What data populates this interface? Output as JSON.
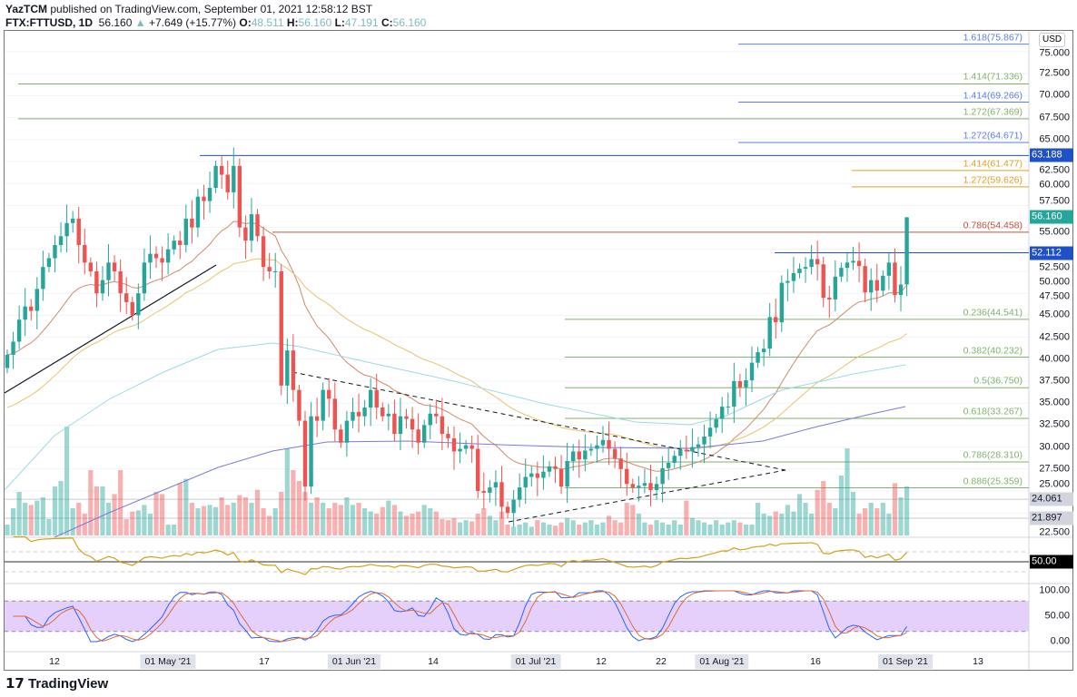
{
  "header": {
    "author": "YazTCM",
    "published": "published on TradingView.com, September 01, 2021 12:58:12 BST",
    "symbol": "FTX:FTTUSD, 1D",
    "last": "56.160",
    "change": "+7.649 (+15.77%)",
    "o_label": "O:",
    "o": "48.511",
    "h_label": "H:",
    "h": "56.160",
    "l_label": "L:",
    "l": "47.191",
    "c_label": "C:",
    "c": "56.160",
    "arrow": "▲"
  },
  "currency": "USD",
  "price_axis_labels": [
    "75.000",
    "72.500",
    "70.000",
    "67.500",
    "65.000",
    "62.500",
    "60.000",
    "57.500",
    "55.000",
    "52.500",
    "50.000",
    "47.500",
    "45.000",
    "42.500",
    "40.000",
    "37.500",
    "35.000",
    "32.500",
    "30.000",
    "27.500",
    "25.000",
    "22.500"
  ],
  "price_tags": [
    {
      "text": "63.188",
      "value": 63.188,
      "color": "#1e50c8"
    },
    {
      "text": "56.160",
      "value": 56.16,
      "color": "#26a69a"
    },
    {
      "text": "52.112",
      "value": 52.112,
      "color": "#1e50c8"
    },
    {
      "text": "24.061",
      "value": 24.061,
      "color": "#d1d4dc",
      "fg": "#131722"
    },
    {
      "text": "21.897",
      "value": 21.897,
      "color": "#d1d4dc",
      "fg": "#131722"
    }
  ],
  "fib_levels": [
    {
      "label": "1.618(75.867)",
      "value": 75.867,
      "color": "#5b7ee5"
    },
    {
      "label": "1.414(71.336)",
      "value": 71.336,
      "color": "#7fb36a"
    },
    {
      "label": "1.414(69.266)",
      "value": 69.266,
      "color": "#5b7ee5"
    },
    {
      "label": "1.272(67.369)",
      "value": 67.369,
      "color": "#7fb36a"
    },
    {
      "label": "1.272(64.671)",
      "value": 64.671,
      "color": "#5b7ee5"
    },
    {
      "label": "1.414(61.477)",
      "value": 61.477,
      "color": "#e0a020"
    },
    {
      "label": "1.272(59.626)",
      "value": 59.626,
      "color": "#e0a020"
    },
    {
      "label": "0.786(54.458)",
      "value": 54.458,
      "color": "#c0503a"
    },
    {
      "label": "0.236(44.541)",
      "value": 44.541,
      "color": "#7fb36a"
    },
    {
      "label": "0.382(40.232)",
      "value": 40.232,
      "color": "#7fb36a"
    },
    {
      "label": "0.5(36.750)",
      "value": 36.75,
      "color": "#7fb36a"
    },
    {
      "label": "0.618(33.267)",
      "value": 33.267,
      "color": "#7fb36a"
    },
    {
      "label": "0.786(28.310)",
      "value": 28.31,
      "color": "#7fb36a"
    },
    {
      "label": "0.886(25.359)",
      "value": 25.359,
      "color": "#7fb36a"
    }
  ],
  "rsi": {
    "level_label": "50.00"
  },
  "stoch": {
    "axis_labels": [
      "100.00",
      "50.00",
      "0.00"
    ],
    "band": [
      20,
      80
    ],
    "band_color": "#e1c8fa"
  },
  "time_labels": [
    {
      "text": "12",
      "hl": false
    },
    {
      "text": "01 May '21",
      "hl": true
    },
    {
      "text": "17",
      "hl": false
    },
    {
      "text": "01 Jun '21",
      "hl": true
    },
    {
      "text": "14",
      "hl": false
    },
    {
      "text": "01 Jul '21",
      "hl": true
    },
    {
      "text": "12",
      "hl": false
    },
    {
      "text": "22",
      "hl": false
    },
    {
      "text": "01 Aug '21",
      "hl": true
    },
    {
      "text": "16",
      "hl": false
    },
    {
      "text": "01 Sep '21",
      "hl": true
    },
    {
      "text": "13",
      "hl": false
    }
  ],
  "logo": "TradingView",
  "chart_data": {
    "type": "candlestick",
    "start_date": "2021-04-03",
    "end_date": "2021-09-01",
    "interval": "1D",
    "colors": {
      "up": "#26a69a",
      "down": "#ef5350"
    },
    "ylim": [
      20,
      77
    ],
    "closes": [
      40.5,
      42,
      44.5,
      46,
      45.5,
      48,
      50.5,
      51.5,
      53,
      54,
      55.5,
      56,
      53,
      51,
      50,
      47.5,
      49,
      51,
      50,
      47.5,
      46.5,
      45,
      47.5,
      51,
      52,
      51.5,
      51,
      52.5,
      53.5,
      53,
      56,
      55,
      58.5,
      58,
      59.5,
      62,
      61,
      59,
      62,
      55,
      53.5,
      56.5,
      54,
      50.5,
      50,
      50,
      37,
      41,
      36.5,
      33,
      25.5,
      33.5,
      33,
      36.5,
      35.5,
      32,
      30.5,
      33,
      34,
      33.5,
      34.5,
      36.5,
      34.5,
      33.5,
      33.8,
      31.5,
      33.5,
      33.2,
      32,
      30.5,
      32.5,
      33.8,
      33.5,
      31.5,
      31,
      29.5,
      29.8,
      30.2,
      29.8,
      25,
      24.8,
      25.4,
      26,
      23.2,
      22.5,
      24,
      25.4,
      26.6,
      27,
      26.5,
      27.2,
      27.8,
      27.5,
      25.5,
      28.4,
      29.5,
      28.6,
      29.6,
      29.8,
      30.2,
      30.8,
      29.8,
      28.7,
      27.5,
      25.8,
      25.4,
      25.6,
      25.9,
      25.1,
      25.8,
      27.6,
      28.2,
      29,
      29.7,
      29.5,
      30,
      30.3,
      31.2,
      32.2,
      33.2,
      34.6,
      34.6,
      37.5,
      36.8,
      37.6,
      39.6,
      40.8,
      41.2,
      44.8,
      44.2,
      48.7,
      48.9,
      49.8,
      50.3,
      50.5,
      51.4,
      50.8,
      47,
      46.8,
      49.4,
      50.4,
      51,
      51.2,
      50.6,
      47.6,
      49,
      47.8,
      49.5,
      51,
      47.3,
      48.5,
      56.16
    ],
    "last_open": 48.511,
    "last_high": 56.16,
    "last_low": 47.191,
    "volume_relative": [
      10,
      25,
      40,
      30,
      28,
      32,
      35,
      15,
      45,
      50,
      100,
      25,
      30,
      20,
      60,
      45,
      45,
      30,
      38,
      60,
      15,
      22,
      23,
      28,
      20,
      40,
      38,
      10,
      10,
      48,
      52,
      30,
      25,
      27,
      28,
      26,
      35,
      28,
      30,
      37,
      35,
      30,
      42,
      25,
      18,
      25,
      40,
      80,
      60,
      50,
      40,
      30,
      35,
      30,
      25,
      30,
      28,
      35,
      28,
      30,
      25,
      22,
      20,
      26,
      32,
      28,
      22,
      18,
      20,
      22,
      28,
      25,
      22,
      15,
      14,
      16,
      12,
      14,
      13,
      20,
      25,
      18,
      14,
      22,
      10,
      8,
      10,
      12,
      8,
      14,
      12,
      10,
      9,
      12,
      16,
      14,
      10,
      12,
      14,
      10,
      12,
      18,
      14,
      12,
      30,
      28,
      20,
      12,
      10,
      14,
      12,
      10,
      14,
      10,
      32,
      16,
      14,
      12,
      10,
      14,
      10,
      12,
      14,
      12,
      10,
      10,
      30,
      20,
      18,
      22,
      20,
      28,
      22,
      38,
      30,
      20,
      42,
      50,
      30,
      25,
      55,
      80,
      40,
      20,
      25,
      30,
      25,
      30,
      20,
      48,
      35,
      45
    ]
  }
}
